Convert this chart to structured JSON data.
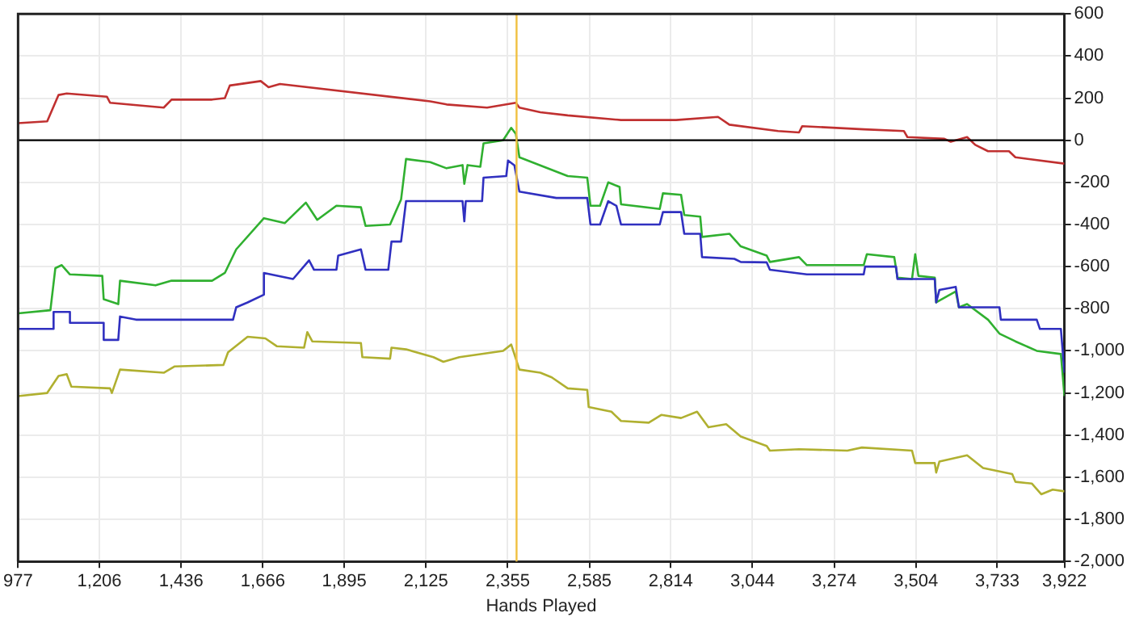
{
  "chart_data": {
    "type": "line",
    "xlabel": "Hands Played",
    "xlim": [
      977,
      3922
    ],
    "xticks": [
      977,
      {
        "value": 1206,
        "label": "1,206"
      },
      {
        "value": 1436,
        "label": "1,436"
      },
      {
        "value": 1666,
        "label": "1,666"
      },
      {
        "value": 1895,
        "label": "1,895"
      },
      {
        "value": 2125,
        "label": "2,125"
      },
      {
        "value": 2355,
        "label": "2,355"
      },
      {
        "value": 2585,
        "label": "2,585"
      },
      {
        "value": 2814,
        "label": "2,814"
      },
      {
        "value": 3044,
        "label": "3,044"
      },
      {
        "value": 3274,
        "label": "3,274"
      },
      {
        "value": 3504,
        "label": "3,504"
      },
      {
        "value": 3733,
        "label": "3,733"
      },
      {
        "value": 3922,
        "label": "3,922"
      }
    ],
    "ylim": [
      -2000,
      600
    ],
    "yticks": [
      {
        "value": -2000,
        "label": "-2,000"
      },
      {
        "value": -1800,
        "label": "-1,800"
      },
      {
        "value": -1600,
        "label": "-1,600"
      },
      {
        "value": -1400,
        "label": "-1,400"
      },
      {
        "value": -1200,
        "label": "-1,200"
      },
      {
        "value": -1000,
        "label": "-1,000"
      },
      -800,
      -600,
      -400,
      -200,
      0,
      200,
      400,
      600
    ],
    "grid": true,
    "legend": false,
    "marker": "none",
    "line_style": "solid",
    "ref_lines": [
      {
        "axis": "y",
        "value": 0,
        "color": "#000000"
      },
      {
        "axis": "x",
        "value": 2380,
        "color": "#f0c040"
      }
    ],
    "series": [
      {
        "color": "#c03030",
        "x": [
          977,
          1059,
          1091,
          1114,
          1227,
          1236,
          1387,
          1409,
          1523,
          1559,
          1573,
          1660,
          1682,
          1714,
          2137,
          2183,
          2297,
          2378,
          2388,
          2447,
          2524,
          2674,
          2829,
          2947,
          2979,
          3116,
          3175,
          3184,
          3357,
          3470,
          3480,
          3584,
          3602,
          3648,
          3671,
          3707,
          3766,
          3784,
          3922
        ],
        "values": [
          81,
          90,
          215,
          222,
          207,
          178,
          155,
          193,
          193,
          200,
          260,
          281,
          252,
          267,
          185,
          170,
          155,
          178,
          155,
          133,
          118,
          96,
          96,
          111,
          74,
          44,
          37,
          67,
          52,
          44,
          15,
          7,
          -7,
          15,
          -22,
          -52,
          -52,
          -81,
          -111
        ]
      },
      {
        "color": "#b0b030",
        "x": [
          977,
          1059,
          1091,
          1114,
          1127,
          1236,
          1241,
          1264,
          1387,
          1418,
          1555,
          1568,
          1623,
          1673,
          1705,
          1782,
          1791,
          1805,
          1942,
          1946,
          2024,
          2028,
          2069,
          2146,
          2174,
          2219,
          2342,
          2365,
          2388,
          2447,
          2479,
          2524,
          2579,
          2583,
          2647,
          2674,
          2752,
          2788,
          2843,
          2888,
          2920,
          2970,
          3011,
          3084,
          3093,
          3175,
          3311,
          3352,
          3493,
          3502,
          3557,
          3561,
          3570,
          3648,
          3693,
          3775,
          3784,
          3830,
          3857,
          3889,
          3922
        ],
        "values": [
          -1215,
          -1200,
          -1119,
          -1111,
          -1170,
          -1178,
          -1200,
          -1089,
          -1104,
          -1074,
          -1067,
          -1007,
          -933,
          -941,
          -978,
          -985,
          -911,
          -955,
          -963,
          -1030,
          -1037,
          -985,
          -993,
          -1030,
          -1052,
          -1030,
          -1000,
          -970,
          -1089,
          -1104,
          -1126,
          -1178,
          -1185,
          -1267,
          -1289,
          -1333,
          -1341,
          -1304,
          -1319,
          -1289,
          -1363,
          -1348,
          -1407,
          -1452,
          -1474,
          -1467,
          -1474,
          -1459,
          -1474,
          -1533,
          -1533,
          -1578,
          -1526,
          -1496,
          -1556,
          -1585,
          -1622,
          -1630,
          -1681,
          -1659,
          -1667
        ]
      },
      {
        "color": "#3030c0",
        "x": [
          977,
          1077,
          1077,
          1123,
          1123,
          1218,
          1218,
          1259,
          1264,
          1309,
          1582,
          1591,
          1623,
          1669,
          1669,
          1751,
          1796,
          1810,
          1873,
          1878,
          1942,
          1955,
          2019,
          2028,
          2055,
          2069,
          2228,
          2233,
          2237,
          2283,
          2287,
          2351,
          2356,
          2374,
          2388,
          2492,
          2579,
          2588,
          2615,
          2638,
          2661,
          2674,
          2783,
          2792,
          2843,
          2852,
          2897,
          2902,
          2993,
          3011,
          3084,
          3093,
          3197,
          3357,
          3361,
          3448,
          3452,
          3557,
          3561,
          3570,
          3616,
          3625,
          3739,
          3743,
          3844,
          3853,
          3912,
          3922
        ],
        "values": [
          -896,
          -896,
          -815,
          -815,
          -867,
          -867,
          -948,
          -948,
          -837,
          -852,
          -852,
          -793,
          -770,
          -733,
          -630,
          -659,
          -570,
          -615,
          -615,
          -548,
          -518,
          -615,
          -615,
          -481,
          -481,
          -289,
          -289,
          -385,
          -289,
          -289,
          -178,
          -170,
          -96,
          -119,
          -244,
          -274,
          -274,
          -400,
          -400,
          -289,
          -311,
          -400,
          -400,
          -341,
          -341,
          -444,
          -444,
          -555,
          -563,
          -578,
          -580,
          -615,
          -637,
          -637,
          -600,
          -600,
          -659,
          -659,
          -770,
          -711,
          -696,
          -793,
          -793,
          -852,
          -852,
          -896,
          -896,
          -1104
        ]
      },
      {
        "color": "#30b030",
        "x": [
          977,
          1068,
          1082,
          1100,
          1123,
          1214,
          1218,
          1259,
          1264,
          1364,
          1409,
          1523,
          1559,
          1591,
          1669,
          1728,
          1787,
          1819,
          1873,
          1942,
          1955,
          2024,
          2055,
          2069,
          2137,
          2183,
          2228,
          2233,
          2242,
          2278,
          2287,
          2342,
          2365,
          2378,
          2388,
          2524,
          2579,
          2588,
          2615,
          2638,
          2670,
          2674,
          2783,
          2792,
          2843,
          2852,
          2897,
          2902,
          2979,
          3011,
          3084,
          3093,
          3175,
          3197,
          3357,
          3366,
          3443,
          3452,
          3493,
          3502,
          3511,
          3557,
          3561,
          3616,
          3625,
          3648,
          3707,
          3739,
          3784,
          3844,
          3912,
          3922
        ],
        "values": [
          -822,
          -807,
          -607,
          -593,
          -637,
          -644,
          -755,
          -778,
          -667,
          -689,
          -667,
          -667,
          -630,
          -518,
          -370,
          -393,
          -296,
          -378,
          -311,
          -318,
          -407,
          -400,
          -281,
          -89,
          -104,
          -133,
          -118,
          -207,
          -118,
          -126,
          -15,
          0,
          59,
          30,
          -81,
          -170,
          -178,
          -311,
          -311,
          -200,
          -222,
          -304,
          -326,
          -252,
          -259,
          -355,
          -363,
          -459,
          -444,
          -504,
          -548,
          -578,
          -555,
          -593,
          -593,
          -541,
          -555,
          -652,
          -659,
          -541,
          -644,
          -652,
          -770,
          -718,
          -793,
          -778,
          -852,
          -918,
          -955,
          -1000,
          -1015,
          -1215
        ]
      }
    ]
  }
}
